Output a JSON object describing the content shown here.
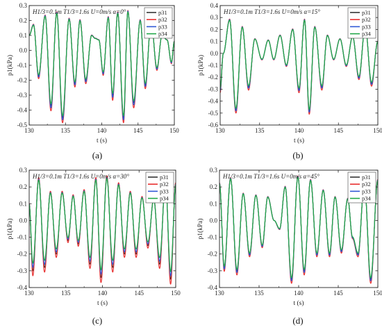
{
  "chart_data": [
    {
      "panel": "a",
      "caption": "(a)",
      "type": "line",
      "annotation": "H1/3=0.1m T1/3=1.6s U=0m/s α=0°",
      "xlabel": "t (s)",
      "ylabel": "p1(kPa)",
      "xlim": [
        130,
        150
      ],
      "ylim": [
        -0.5,
        0.3
      ],
      "xticks": [
        130,
        135,
        140,
        145,
        150
      ],
      "yticks": [
        -0.5,
        -0.4,
        -0.3,
        -0.2,
        -0.1,
        0.0,
        0.1,
        0.2,
        0.3
      ],
      "ytick_labels": [
        "-0.5",
        "-0.4",
        "-0.3",
        "-0.2",
        "-0.1",
        "0.0",
        "0.1",
        "0.2",
        "0.3"
      ],
      "legend": [
        "p31",
        "p32",
        "p33",
        "p34"
      ],
      "legend_position": "top-right",
      "series_colors": [
        "#333333",
        "#e83030",
        "#2f57d6",
        "#23a84a"
      ],
      "extrema": {
        "x": [
          130.0,
          130.6,
          131.3,
          132.2,
          133.0,
          133.8,
          134.6,
          135.5,
          136.3,
          137.0,
          137.8,
          138.6,
          139.1,
          139.6,
          140.2,
          140.9,
          141.5,
          142.2,
          143.0,
          143.6,
          144.4,
          145.3,
          146.0,
          146.8,
          147.6,
          148.3,
          149.0,
          149.6,
          150.0
        ],
        "y": [
          0.1,
          0.17,
          -0.17,
          0.23,
          -0.37,
          0.25,
          -0.45,
          0.21,
          -0.22,
          0.2,
          -0.2,
          0.1,
          0.08,
          0.07,
          -0.15,
          0.22,
          -0.3,
          0.25,
          -0.45,
          0.26,
          -0.35,
          0.2,
          -0.23,
          0.19,
          -0.12,
          0.1,
          0.07,
          -0.08,
          0.06
        ]
      },
      "offsets": [
        0.0,
        -0.035,
        -0.015,
        0.012
      ]
    },
    {
      "panel": "b",
      "caption": "(b)",
      "type": "line",
      "annotation": "H1/3=0.1m T1/3=1.6s U=0m/s α=15°",
      "xlabel": "t (s)",
      "ylabel": "p1(kPa)",
      "xlim": [
        130,
        150
      ],
      "ylim": [
        -0.6,
        0.4
      ],
      "xticks": [
        130,
        135,
        140,
        145,
        150
      ],
      "yticks": [
        -0.6,
        -0.5,
        -0.4,
        -0.3,
        -0.2,
        -0.1,
        0.0,
        0.1,
        0.2,
        0.3,
        0.4
      ],
      "ytick_labels": [
        "-0.6",
        "-0.5",
        "-0.4",
        "-0.3",
        "-0.2",
        "-0.1",
        "0.0",
        "0.1",
        "0.2",
        "0.3",
        "0.4"
      ],
      "legend": [
        "p31",
        "p32",
        "p33",
        "p34"
      ],
      "legend_position": "top-right",
      "series_colors": [
        "#333333",
        "#e83030",
        "#2f57d6",
        "#23a84a"
      ],
      "extrema": {
        "x": [
          130.0,
          130.4,
          131.2,
          132.0,
          132.8,
          133.6,
          134.4,
          135.3,
          136.1,
          136.8,
          137.6,
          138.4,
          139.2,
          140.0,
          140.7,
          141.3,
          142.0,
          142.9,
          143.6,
          144.4,
          145.2,
          146.0,
          146.8,
          147.6,
          148.4,
          149.2,
          150.0
        ],
        "y": [
          -0.3,
          0.0,
          0.28,
          -0.47,
          0.22,
          -0.28,
          0.12,
          -0.05,
          0.11,
          -0.05,
          0.15,
          -0.1,
          0.2,
          -0.3,
          0.28,
          -0.48,
          0.22,
          -0.28,
          0.15,
          -0.05,
          0.12,
          -0.1,
          0.14,
          -0.2,
          0.22,
          -0.25,
          0.1
        ]
      },
      "offsets": [
        0.0,
        -0.03,
        -0.012,
        0.01
      ]
    },
    {
      "panel": "c",
      "caption": "(c)",
      "type": "line",
      "annotation": "H1/3=0.1m T1/3=1.6s U=0m/s α=30°",
      "xlabel": "t (s)",
      "ylabel": "p1(kPa)",
      "xlim": [
        130,
        150
      ],
      "ylim": [
        -0.4,
        0.3
      ],
      "xticks": [
        130,
        135,
        140,
        145,
        150
      ],
      "yticks": [
        -0.4,
        -0.3,
        -0.2,
        -0.1,
        0.0,
        0.1,
        0.2,
        0.3
      ],
      "ytick_labels": [
        "-0.4",
        "-0.3",
        "-0.2",
        "-0.1",
        "0.0",
        "0.1",
        "0.2",
        "0.3"
      ],
      "legend": [
        "p31",
        "p32",
        "p33",
        "p34"
      ],
      "legend_position": "top-right",
      "series_colors": [
        "#333333",
        "#e83030",
        "#2f57d6",
        "#23a84a"
      ],
      "extrema": {
        "x": [
          130.0,
          130.5,
          131.3,
          132.1,
          132.9,
          133.7,
          134.5,
          135.3,
          136.0,
          136.7,
          137.5,
          138.3,
          139.1,
          139.8,
          140.6,
          141.4,
          142.2,
          143.0,
          143.8,
          144.6,
          145.4,
          146.2,
          147.0,
          147.8,
          148.6,
          149.3,
          150.0
        ],
        "y": [
          0.1,
          -0.3,
          0.25,
          -0.28,
          0.17,
          -0.2,
          0.17,
          -0.12,
          0.15,
          -0.14,
          0.18,
          -0.26,
          0.25,
          -0.34,
          0.26,
          -0.28,
          0.22,
          -0.2,
          0.17,
          -0.2,
          0.14,
          -0.15,
          0.13,
          -0.26,
          0.24,
          -0.35,
          0.22
        ]
      },
      "offsets": [
        0.0,
        -0.03,
        0.02,
        0.045
      ]
    },
    {
      "panel": "d",
      "caption": "(d)",
      "type": "line",
      "annotation": "H1/3=0.1m T1/3=1.6s U=0m/s α=45°",
      "xlabel": "t (s)",
      "ylabel": "p1(kPa)",
      "xlim": [
        130,
        150
      ],
      "ylim": [
        -0.4,
        0.3
      ],
      "xticks": [
        130,
        135,
        140,
        145,
        150
      ],
      "yticks": [
        -0.4,
        -0.3,
        -0.2,
        -0.1,
        0.0,
        0.1,
        0.2,
        0.3
      ],
      "ytick_labels": [
        "-0.4",
        "-0.3",
        "-0.2",
        "-0.1",
        "0.0",
        "0.1",
        "0.2",
        "0.3"
      ],
      "legend": [
        "p31",
        "p32",
        "p33",
        "p34"
      ],
      "legend_position": "top-right",
      "series_colors": [
        "#333333",
        "#e83030",
        "#2f57d6",
        "#23a84a"
      ],
      "extrema": {
        "x": [
          130.0,
          130.6,
          131.4,
          132.2,
          133.0,
          133.8,
          134.6,
          135.4,
          136.1,
          136.9,
          137.6,
          138.3,
          139.1,
          139.9,
          140.7,
          141.5,
          142.3,
          143.1,
          143.9,
          144.6,
          145.4,
          146.2,
          146.8,
          147.5,
          148.3,
          149.1,
          150.0
        ],
        "y": [
          0.22,
          -0.28,
          0.25,
          -0.3,
          0.16,
          -0.2,
          0.15,
          -0.15,
          0.14,
          0.0,
          -0.05,
          0.2,
          -0.35,
          0.26,
          -0.3,
          0.24,
          -0.2,
          0.18,
          -0.2,
          0.14,
          -0.18,
          0.13,
          -0.1,
          -0.2,
          0.22,
          -0.35,
          0.24
        ]
      },
      "offsets": [
        0.0,
        -0.025,
        -0.01,
        0.008
      ]
    }
  ]
}
